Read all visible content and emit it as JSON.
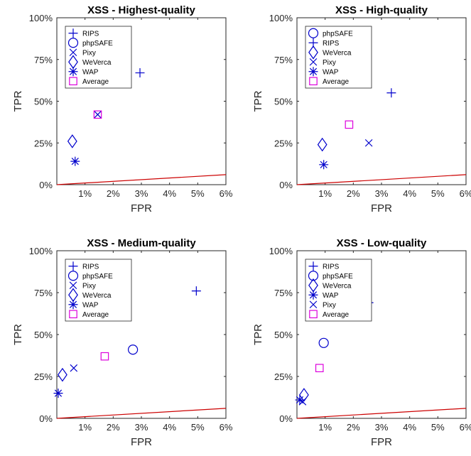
{
  "chart_data": [
    {
      "type": "scatter",
      "title": "XSS - Highest-quality",
      "xlabel": "FPR",
      "ylabel": "TPR",
      "xlim": [
        0,
        6
      ],
      "ylim": [
        0,
        100
      ],
      "x_ticks": [
        "1%",
        "2%",
        "3%",
        "4%",
        "5%",
        "6%"
      ],
      "y_ticks": [
        "0%",
        "25%",
        "50%",
        "75%",
        "100%"
      ],
      "grid": false,
      "legend_position": "top-left",
      "reference_line": {
        "x": [
          0,
          6
        ],
        "y": [
          0,
          6
        ],
        "color": "#cc0000"
      },
      "series": [
        {
          "name": "RIPS",
          "marker": "plus",
          "color": "#0000cc",
          "x": [
            2.95
          ],
          "y": [
            67
          ]
        },
        {
          "name": "phpSAFE",
          "marker": "circle",
          "color": "#0000cc",
          "x": [],
          "y": []
        },
        {
          "name": "Pixy",
          "marker": "x",
          "color": "#0000cc",
          "x": [
            1.45
          ],
          "y": [
            42
          ]
        },
        {
          "name": "WeVerca",
          "marker": "diamond",
          "color": "#0000cc",
          "x": [
            0.55
          ],
          "y": [
            26
          ]
        },
        {
          "name": "WAP",
          "marker": "asterisk",
          "color": "#0000cc",
          "x": [
            0.65
          ],
          "y": [
            14
          ]
        },
        {
          "name": "Average",
          "marker": "square",
          "color": "#dd00dd",
          "x": [
            1.45
          ],
          "y": [
            42
          ]
        }
      ]
    },
    {
      "type": "scatter",
      "title": "XSS - High-quality",
      "xlabel": "FPR",
      "ylabel": "TPR",
      "xlim": [
        0,
        6
      ],
      "ylim": [
        0,
        100
      ],
      "x_ticks": [
        "1%",
        "2%",
        "3%",
        "4%",
        "5%",
        "6%"
      ],
      "y_ticks": [
        "0%",
        "25%",
        "50%",
        "75%",
        "100%"
      ],
      "grid": false,
      "legend_position": "top-left",
      "reference_line": {
        "x": [
          0,
          6
        ],
        "y": [
          0,
          6
        ],
        "color": "#cc0000"
      },
      "series": [
        {
          "name": "phpSAFE",
          "marker": "circle",
          "color": "#0000cc",
          "x": [],
          "y": []
        },
        {
          "name": "RIPS",
          "marker": "plus",
          "color": "#0000cc",
          "x": [
            3.35
          ],
          "y": [
            55
          ]
        },
        {
          "name": "WeVerca",
          "marker": "diamond",
          "color": "#0000cc",
          "x": [
            0.9
          ],
          "y": [
            24
          ]
        },
        {
          "name": "Pixy",
          "marker": "x",
          "color": "#0000cc",
          "x": [
            2.55
          ],
          "y": [
            25
          ]
        },
        {
          "name": "WAP",
          "marker": "asterisk",
          "color": "#0000cc",
          "x": [
            0.95
          ],
          "y": [
            12
          ]
        },
        {
          "name": "Average",
          "marker": "square",
          "color": "#dd00dd",
          "x": [
            1.85
          ],
          "y": [
            36
          ]
        }
      ]
    },
    {
      "type": "scatter",
      "title": "XSS - Medium-quality",
      "xlabel": "FPR",
      "ylabel": "TPR",
      "xlim": [
        0,
        6
      ],
      "ylim": [
        0,
        100
      ],
      "x_ticks": [
        "1%",
        "2%",
        "3%",
        "4%",
        "5%",
        "6%"
      ],
      "y_ticks": [
        "0%",
        "25%",
        "50%",
        "75%",
        "100%"
      ],
      "grid": false,
      "legend_position": "top-left",
      "reference_line": {
        "x": [
          0,
          6
        ],
        "y": [
          0,
          6
        ],
        "color": "#cc0000"
      },
      "series": [
        {
          "name": "RIPS",
          "marker": "plus",
          "color": "#0000cc",
          "x": [
            4.95
          ],
          "y": [
            76
          ]
        },
        {
          "name": "phpSAFE",
          "marker": "circle",
          "color": "#0000cc",
          "x": [
            2.7
          ],
          "y": [
            41
          ]
        },
        {
          "name": "Pixy",
          "marker": "x",
          "color": "#0000cc",
          "x": [
            0.6
          ],
          "y": [
            30
          ]
        },
        {
          "name": "WeVerca",
          "marker": "diamond",
          "color": "#0000cc",
          "x": [
            0.2
          ],
          "y": [
            26
          ]
        },
        {
          "name": "WAP",
          "marker": "asterisk",
          "color": "#0000cc",
          "x": [
            0.05
          ],
          "y": [
            15
          ]
        },
        {
          "name": "Average",
          "marker": "square",
          "color": "#dd00dd",
          "x": [
            1.7
          ],
          "y": [
            37
          ]
        }
      ]
    },
    {
      "type": "scatter",
      "title": "XSS - Low-quality",
      "xlabel": "FPR",
      "ylabel": "TPR",
      "xlim": [
        0,
        6
      ],
      "ylim": [
        0,
        100
      ],
      "x_ticks": [
        "1%",
        "2%",
        "3%",
        "4%",
        "5%",
        "6%"
      ],
      "y_ticks": [
        "0%",
        "25%",
        "50%",
        "75%",
        "100%"
      ],
      "grid": false,
      "legend_position": "top-left",
      "reference_line": {
        "x": [
          0,
          6
        ],
        "y": [
          0,
          6
        ],
        "color": "#cc0000"
      },
      "series": [
        {
          "name": "RIPS",
          "marker": "plus",
          "color": "#0000cc",
          "x": [
            2.55
          ],
          "y": [
            69
          ]
        },
        {
          "name": "phpSAFE",
          "marker": "circle",
          "color": "#0000cc",
          "x": [
            0.95
          ],
          "y": [
            45
          ]
        },
        {
          "name": "WeVerca",
          "marker": "diamond",
          "color": "#0000cc",
          "x": [
            0.25
          ],
          "y": [
            14
          ]
        },
        {
          "name": "WAP",
          "marker": "asterisk",
          "color": "#0000cc",
          "x": [
            0.1
          ],
          "y": [
            11
          ]
        },
        {
          "name": "Pixy",
          "marker": "x",
          "color": "#0000cc",
          "x": [
            0.2
          ],
          "y": [
            10
          ]
        },
        {
          "name": "Average",
          "marker": "square",
          "color": "#dd00dd",
          "x": [
            0.8
          ],
          "y": [
            30
          ]
        }
      ]
    }
  ]
}
